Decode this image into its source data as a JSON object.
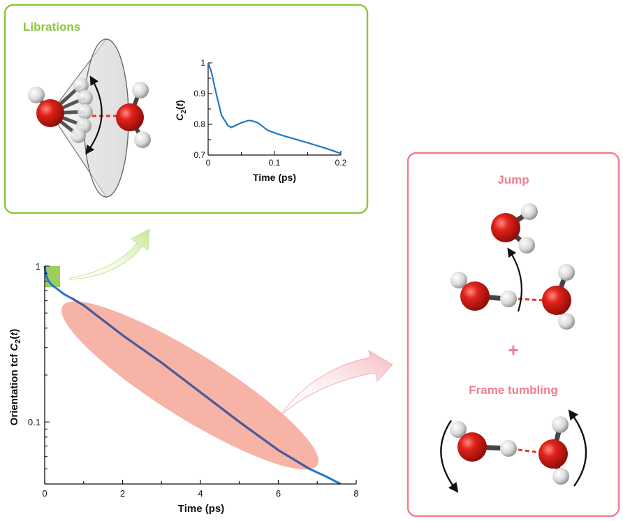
{
  "librations_panel": {
    "title": "Librations",
    "border_color": "#8cc63f"
  },
  "right_panel": {
    "jump_title": "Jump",
    "plus": "+",
    "tumbling_title": "Frame tumbling",
    "border_color": "#ef7f8e"
  },
  "main_chart": {
    "ylabel_main": "Orientation tcf ",
    "ylabel_sym": "C",
    "ylabel_sub": "2",
    "ylabel_arg_open": "(",
    "ylabel_arg": "t",
    "ylabel_arg_close": ")",
    "xlabel": "Time (ps)",
    "x_ticks": [
      "0",
      "2",
      "4",
      "6",
      "8"
    ],
    "y_ticks": [
      "1",
      "0.1"
    ],
    "colors": {
      "curve": "#1f77c8",
      "highlight_green": "#8cc63f",
      "highlight_pink": "#f4a090"
    }
  },
  "inset_chart": {
    "ylabel_sym": "C",
    "ylabel_sub": "2",
    "ylabel_arg_open": "(",
    "ylabel_arg": "t",
    "ylabel_arg_close": ")",
    "xlabel": "Time (ps)",
    "x_ticks": [
      "0",
      "0.1",
      "0.2"
    ],
    "y_ticks": [
      "1",
      "0.9",
      "0.8",
      "0.7"
    ]
  },
  "chart_data": [
    {
      "type": "line",
      "xlim": [
        0,
        8
      ],
      "ylim": [
        0.04,
        1
      ],
      "yscale": "log",
      "series": [
        {
          "x": [
            0,
            0.02,
            0.05,
            0.1,
            0.2,
            0.3,
            0.5,
            0.7,
            1,
            2,
            3,
            4,
            5,
            6,
            6.8,
            7.2,
            7.6
          ],
          "y": [
            1,
            0.93,
            0.85,
            0.8,
            0.75,
            0.72,
            0.66,
            0.62,
            0.56,
            0.36,
            0.24,
            0.155,
            0.1,
            0.066,
            0.05,
            0.045,
            0.04
          ]
        }
      ]
    },
    {
      "type": "line",
      "xlim": [
        0,
        0.2
      ],
      "ylim": [
        0.7,
        1
      ],
      "series": [
        {
          "x": [
            0,
            0.005,
            0.01,
            0.02,
            0.03,
            0.035,
            0.04,
            0.05,
            0.06,
            0.065,
            0.075,
            0.09,
            0.11,
            0.15,
            0.18,
            0.2
          ],
          "y": [
            1,
            0.97,
            0.92,
            0.83,
            0.795,
            0.79,
            0.795,
            0.805,
            0.812,
            0.812,
            0.805,
            0.78,
            0.765,
            0.74,
            0.72,
            0.705
          ]
        }
      ]
    }
  ]
}
